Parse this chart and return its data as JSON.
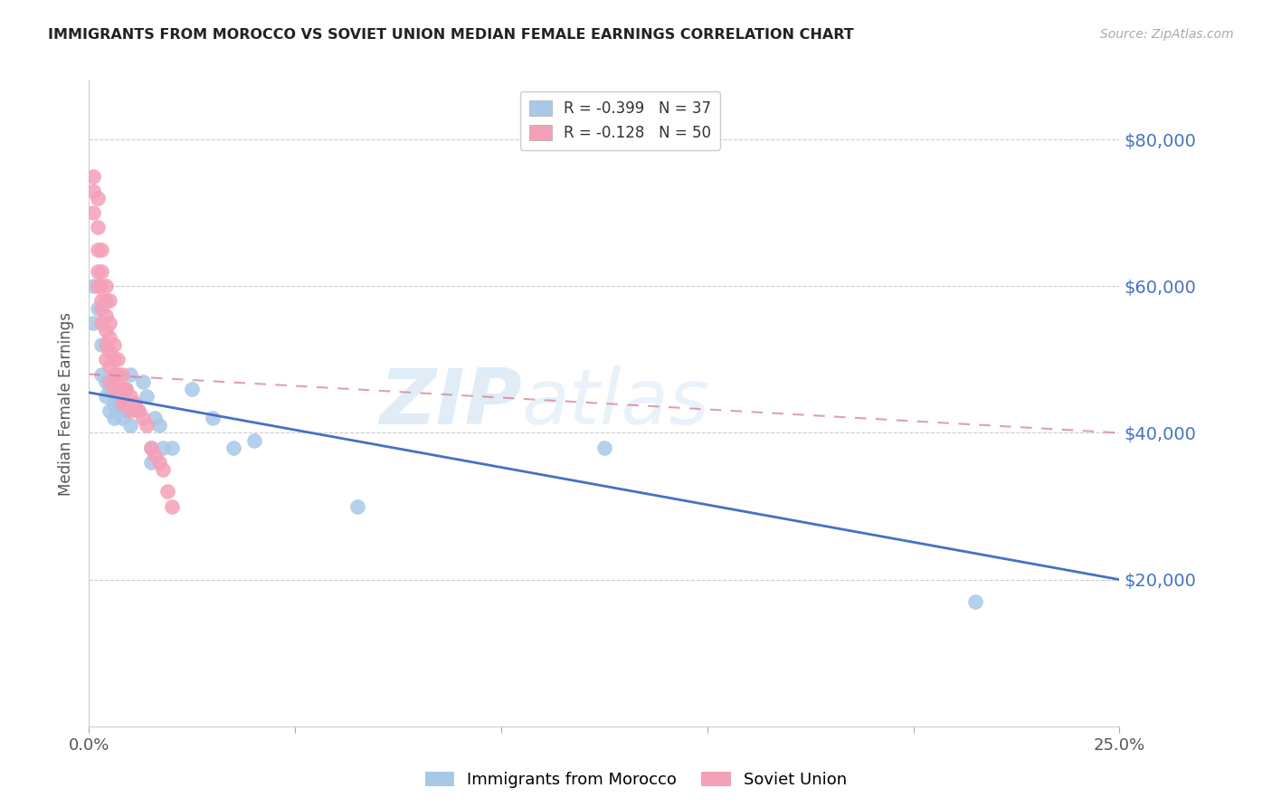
{
  "title": "IMMIGRANTS FROM MOROCCO VS SOVIET UNION MEDIAN FEMALE EARNINGS CORRELATION CHART",
  "source": "Source: ZipAtlas.com",
  "ylabel": "Median Female Earnings",
  "y_ticks": [
    20000,
    40000,
    60000,
    80000
  ],
  "y_labels": [
    "$20,000",
    "$40,000",
    "$60,000",
    "$80,000"
  ],
  "x_min": 0.0,
  "x_max": 0.25,
  "y_min": 0,
  "y_max": 88000,
  "watermark_zip": "ZIP",
  "watermark_atlas": "atlas",
  "morocco_color": "#a8c8e8",
  "soviet_color": "#f4a0b8",
  "morocco_edge": "#7aaad0",
  "soviet_edge": "#e87898",
  "morocco_line_color": "#4472c4",
  "soviet_line_color": "#d4809a",
  "legend_morocco_R": "-0.399",
  "legend_morocco_N": "37",
  "legend_soviet_R": "-0.128",
  "legend_soviet_N": "50",
  "morocco_x": [
    0.001,
    0.001,
    0.002,
    0.003,
    0.003,
    0.004,
    0.004,
    0.005,
    0.005,
    0.006,
    0.006,
    0.006,
    0.007,
    0.007,
    0.008,
    0.008,
    0.009,
    0.009,
    0.01,
    0.01,
    0.011,
    0.012,
    0.013,
    0.014,
    0.015,
    0.015,
    0.016,
    0.017,
    0.018,
    0.02,
    0.025,
    0.03,
    0.035,
    0.04,
    0.065,
    0.125,
    0.215
  ],
  "morocco_y": [
    60000,
    55000,
    57000,
    52000,
    48000,
    47000,
    45000,
    46000,
    43000,
    45000,
    44000,
    42000,
    44000,
    43000,
    45000,
    42000,
    46000,
    43000,
    48000,
    41000,
    44000,
    43000,
    47000,
    45000,
    38000,
    36000,
    42000,
    41000,
    38000,
    38000,
    46000,
    42000,
    38000,
    39000,
    30000,
    38000,
    17000
  ],
  "soviet_x": [
    0.001,
    0.001,
    0.001,
    0.002,
    0.002,
    0.002,
    0.002,
    0.002,
    0.003,
    0.003,
    0.003,
    0.003,
    0.003,
    0.003,
    0.004,
    0.004,
    0.004,
    0.004,
    0.004,
    0.004,
    0.005,
    0.005,
    0.005,
    0.005,
    0.005,
    0.005,
    0.006,
    0.006,
    0.006,
    0.006,
    0.007,
    0.007,
    0.007,
    0.008,
    0.008,
    0.008,
    0.009,
    0.009,
    0.01,
    0.01,
    0.011,
    0.012,
    0.013,
    0.014,
    0.015,
    0.016,
    0.017,
    0.018,
    0.019,
    0.02
  ],
  "soviet_y": [
    75000,
    73000,
    70000,
    72000,
    68000,
    65000,
    62000,
    60000,
    65000,
    62000,
    60000,
    58000,
    55000,
    57000,
    60000,
    58000,
    56000,
    54000,
    52000,
    50000,
    58000,
    55000,
    53000,
    51000,
    49000,
    47000,
    52000,
    50000,
    48000,
    46000,
    50000,
    48000,
    46000,
    48000,
    46000,
    44000,
    46000,
    44000,
    45000,
    43000,
    44000,
    43000,
    42000,
    41000,
    38000,
    37000,
    36000,
    35000,
    32000,
    30000
  ],
  "morocco_line_x": [
    0.0,
    0.25
  ],
  "morocco_line_y": [
    45500,
    20000
  ],
  "soviet_line_x": [
    0.0,
    0.25
  ],
  "soviet_line_y": [
    48000,
    40000
  ]
}
